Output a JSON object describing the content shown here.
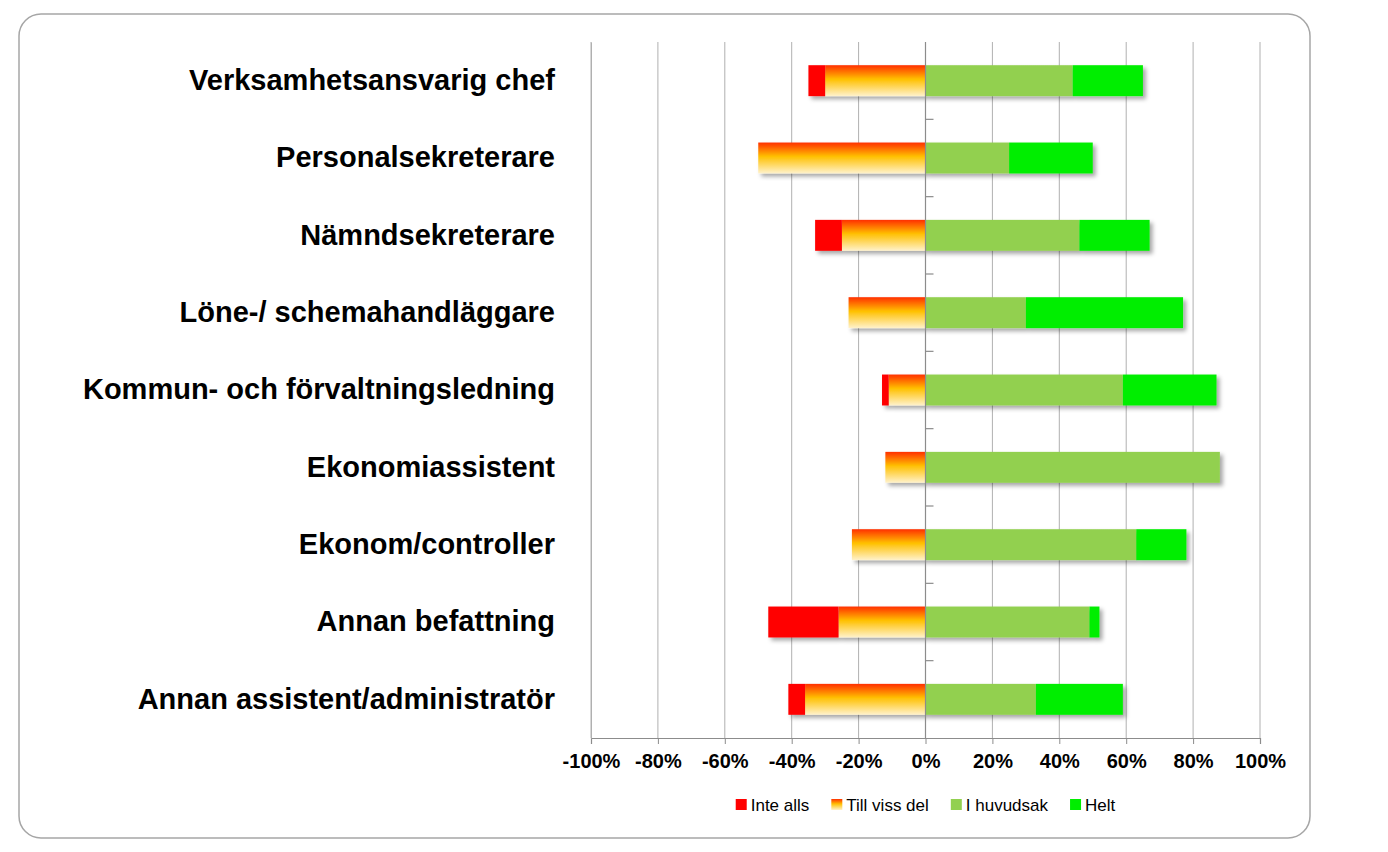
{
  "chart_data": {
    "type": "bar",
    "orientation": "horizontal",
    "stacked": true,
    "grid": true,
    "legend": "bottom",
    "categories": [
      "Verksamhetsansvarig chef",
      "Personalsekreterare",
      "Nämndsekreterare",
      "Löne-/ schemahandläggare",
      "Kommun- och förvaltningsledning",
      "Ekonomiassistent",
      "Ekonom/controller",
      "Annan befattning",
      "Annan assistent/administratör"
    ],
    "series": [
      {
        "name": "Inte alls",
        "color": "#ff0000",
        "values": [
          -5,
          0,
          -8,
          0,
          -2,
          0,
          0,
          -21,
          -5
        ]
      },
      {
        "name": "Till viss del",
        "color": "#ffc000",
        "values": [
          -30,
          -50,
          -25,
          -23,
          -11,
          -12,
          -22,
          -26,
          -36
        ]
      },
      {
        "name": "I huvudsak",
        "color": "#92d050",
        "values": [
          44,
          25,
          46,
          30,
          59,
          88,
          63,
          49,
          33
        ]
      },
      {
        "name": "Helt",
        "color": "#00ee00",
        "values": [
          21,
          25,
          21,
          47,
          28,
          0,
          15,
          3,
          26
        ]
      }
    ],
    "xlim": [
      -100,
      100
    ],
    "xticks": [
      {
        "value": -100,
        "label": "-100%"
      },
      {
        "value": -80,
        "label": "-80%"
      },
      {
        "value": -60,
        "label": "-60%"
      },
      {
        "value": -40,
        "label": "-40%"
      },
      {
        "value": -20,
        "label": "-20%"
      },
      {
        "value": 0,
        "label": "0%"
      },
      {
        "value": 20,
        "label": "20%"
      },
      {
        "value": 40,
        "label": "40%"
      },
      {
        "value": 60,
        "label": "60%"
      },
      {
        "value": 80,
        "label": "80%"
      },
      {
        "value": 100,
        "label": "100%"
      }
    ]
  }
}
